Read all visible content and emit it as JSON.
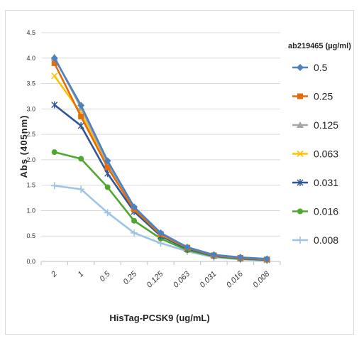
{
  "chart_data": {
    "type": "line",
    "title": "",
    "xlabel": "HisTag-PCSK9 (ug/mL)",
    "ylabel": "Abs (405nm)",
    "ylim": [
      0,
      4.5
    ],
    "yticks": [
      "0.0",
      "0.5",
      "1.0",
      "1.5",
      "2.0",
      "2.5",
      "3.0",
      "3.5",
      "4.0",
      "4.5"
    ],
    "categories": [
      "2",
      "1",
      "0.5",
      "0.25",
      "0.125",
      "0.063",
      "0.031",
      "0.016",
      "0.008"
    ],
    "grid": true,
    "legend_position": "right",
    "legend_title": "ab219465 (µg/ml)",
    "series": [
      {
        "name": "0.5",
        "color": "#4f81bd",
        "marker": "diamond",
        "values": [
          4.0,
          3.07,
          1.98,
          1.07,
          0.56,
          0.28,
          0.13,
          0.08,
          0.05
        ]
      },
      {
        "name": "0.25",
        "color": "#e46c0a",
        "marker": "square",
        "values": [
          3.9,
          2.85,
          1.85,
          1.02,
          0.54,
          0.27,
          0.12,
          0.07,
          0.04
        ]
      },
      {
        "name": "0.125",
        "color": "#a5a5a5",
        "marker": "triangle",
        "values": [
          4.02,
          3.02,
          1.93,
          1.05,
          0.55,
          0.28,
          0.13,
          0.08,
          0.05
        ]
      },
      {
        "name": "0.063",
        "color": "#ffc000",
        "marker": "x",
        "values": [
          3.65,
          2.92,
          1.87,
          1.03,
          0.53,
          0.27,
          0.12,
          0.07,
          0.04
        ]
      },
      {
        "name": "0.031",
        "color": "#2f5597",
        "marker": "star",
        "values": [
          3.08,
          2.67,
          1.73,
          0.98,
          0.5,
          0.25,
          0.11,
          0.06,
          0.03
        ]
      },
      {
        "name": "0.016",
        "color": "#4ea72e",
        "marker": "circle",
        "values": [
          2.15,
          2.02,
          1.46,
          0.8,
          0.45,
          0.22,
          0.1,
          0.05,
          0.03
        ]
      },
      {
        "name": "0.008",
        "color": "#9dc3e6",
        "marker": "plus",
        "values": [
          1.49,
          1.42,
          0.96,
          0.56,
          0.36,
          0.2,
          0.08,
          0.04,
          0.02
        ]
      }
    ]
  }
}
